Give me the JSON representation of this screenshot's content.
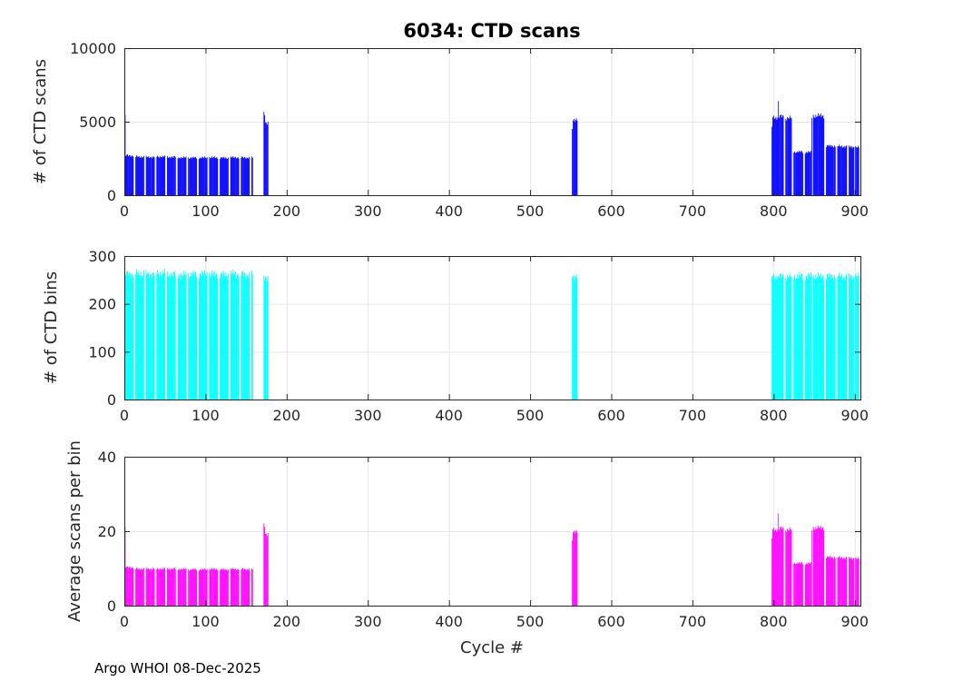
{
  "figure": {
    "title": "6034: CTD scans",
    "xlabel": "Cycle #",
    "footer": "Argo WHOI 08-Dec-2025",
    "background": "#ffffff",
    "axis_color": "#262626",
    "grid_color": "#e6e6e6",
    "tick_color": "#262626"
  },
  "chart_data": {
    "type": "bar",
    "title": "6034: CTD scans",
    "xlabel": "Cycle #",
    "x_unit": "cycle number",
    "xlim": [
      0,
      907
    ],
    "xticks": [
      0,
      100,
      200,
      300,
      400,
      500,
      600,
      700,
      800,
      900
    ],
    "grid": true,
    "legend": "none",
    "subplots": [
      {
        "ylabel": "# of CTD scans",
        "ylim": [
          0,
          10000
        ],
        "yticks": [
          0,
          5000,
          10000
        ],
        "color": "#0000ff",
        "value_field": "scans"
      },
      {
        "ylabel": "# of CTD bins",
        "ylim": [
          0,
          300
        ],
        "yticks": [
          0,
          100,
          200,
          300
        ],
        "color": "#00ffff",
        "value_field": "bins"
      },
      {
        "ylabel": "Average scans per bin",
        "ylim": [
          0,
          40
        ],
        "yticks": [
          0,
          20,
          40
        ],
        "color": "#ff00ff",
        "value_field": "avg"
      }
    ],
    "runs_note": "Each run spans cycles from..to inclusive; cycles between runs have no data (white gaps). avg = scans/bins.",
    "runs": [
      {
        "from": 1,
        "to": 1,
        "scans": 5450,
        "bins": 258,
        "avg": 21.1
      },
      {
        "from": 2,
        "to": 11,
        "scans": 2700,
        "bins": 263,
        "avg": 10.3
      },
      {
        "from": 14,
        "to": 24,
        "scans": 2620,
        "bins": 264,
        "avg": 9.9
      },
      {
        "from": 27,
        "to": 37,
        "scans": 2600,
        "bins": 263,
        "avg": 9.9
      },
      {
        "from": 40,
        "to": 50,
        "scans": 2630,
        "bins": 265,
        "avg": 9.9
      },
      {
        "from": 53,
        "to": 63,
        "scans": 2600,
        "bins": 262,
        "avg": 9.9
      },
      {
        "from": 66,
        "to": 76,
        "scans": 2560,
        "bins": 261,
        "avg": 9.8
      },
      {
        "from": 79,
        "to": 89,
        "scans": 2550,
        "bins": 262,
        "avg": 9.7
      },
      {
        "from": 92,
        "to": 102,
        "scans": 2550,
        "bins": 263,
        "avg": 9.7
      },
      {
        "from": 105,
        "to": 115,
        "scans": 2560,
        "bins": 262,
        "avg": 9.8
      },
      {
        "from": 118,
        "to": 128,
        "scans": 2540,
        "bins": 261,
        "avg": 9.7
      },
      {
        "from": 131,
        "to": 141,
        "scans": 2570,
        "bins": 263,
        "avg": 9.8
      },
      {
        "from": 144,
        "to": 154,
        "scans": 2560,
        "bins": 262,
        "avg": 9.8
      },
      {
        "from": 157,
        "to": 158,
        "scans": 2540,
        "bins": 261,
        "avg": 9.7
      },
      {
        "from": 172,
        "to": 173,
        "scans": 5600,
        "bins": 257,
        "avg": 21.8
      },
      {
        "from": 174,
        "to": 177,
        "scans": 4950,
        "bins": 256,
        "avg": 19.3
      },
      {
        "from": 552,
        "to": 552,
        "scans": 4500,
        "bins": 257,
        "avg": 17.5
      },
      {
        "from": 553,
        "to": 558,
        "scans": 5150,
        "bins": 258,
        "avg": 20.0
      },
      {
        "from": 798,
        "to": 798,
        "scans": 4650,
        "bins": 257,
        "avg": 18.1
      },
      {
        "from": 799,
        "to": 805,
        "scans": 5300,
        "bins": 258,
        "avg": 20.5
      },
      {
        "from": 806,
        "to": 806,
        "scans": 6400,
        "bins": 258,
        "avg": 24.8
      },
      {
        "from": 807,
        "to": 812,
        "scans": 5350,
        "bins": 258,
        "avg": 20.7
      },
      {
        "from": 815,
        "to": 822,
        "scans": 5250,
        "bins": 257,
        "avg": 20.4
      },
      {
        "from": 825,
        "to": 836,
        "scans": 2950,
        "bins": 258,
        "avg": 11.4
      },
      {
        "from": 839,
        "to": 846,
        "scans": 2925,
        "bins": 258,
        "avg": 11.3
      },
      {
        "from": 847,
        "to": 847,
        "scans": 5250,
        "bins": 259,
        "avg": 20.3
      },
      {
        "from": 849,
        "to": 862,
        "scans": 5400,
        "bins": 258,
        "avg": 20.9
      },
      {
        "from": 865,
        "to": 876,
        "scans": 3350,
        "bins": 258,
        "avg": 13.0
      },
      {
        "from": 879,
        "to": 890,
        "scans": 3325,
        "bins": 258,
        "avg": 12.9
      },
      {
        "from": 893,
        "to": 899,
        "scans": 3300,
        "bins": 258,
        "avg": 12.8
      },
      {
        "from": 901,
        "to": 905,
        "scans": 3250,
        "bins": 257,
        "avg": 12.6
      }
    ]
  }
}
